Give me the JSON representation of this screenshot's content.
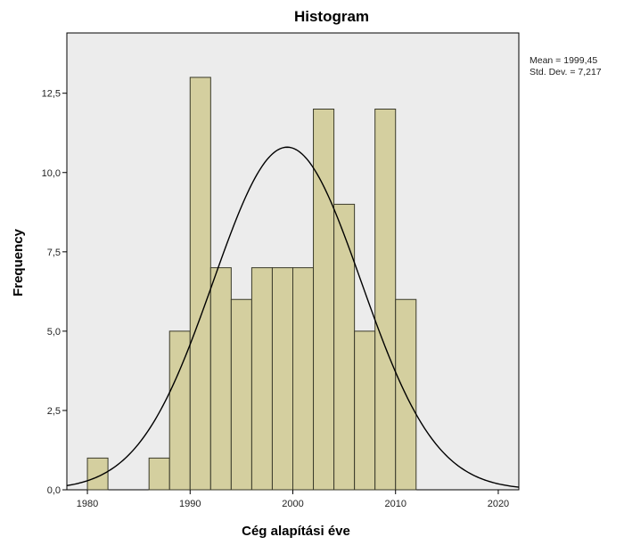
{
  "chart_data": {
    "type": "bar",
    "title": "Histogram",
    "xlabel": "Cég alapítási éve",
    "ylabel": "Frequency",
    "xlim": [
      1978,
      2022
    ],
    "ylim": [
      0,
      14.4
    ],
    "x_ticks": [
      1980,
      1990,
      2000,
      2010,
      2020
    ],
    "x_tick_labels": [
      "1980",
      "1990",
      "2000",
      "2010",
      "2020"
    ],
    "y_ticks": [
      0,
      2.5,
      5,
      7.5,
      10,
      12.5
    ],
    "y_tick_labels": [
      "0,0",
      "2,5",
      "5,0",
      "7,5",
      "10,0",
      "12,5"
    ],
    "bin_width": 2,
    "bins": [
      {
        "start": 1980,
        "end": 1982,
        "count": 1
      },
      {
        "start": 1986,
        "end": 1988,
        "count": 1
      },
      {
        "start": 1988,
        "end": 1990,
        "count": 5
      },
      {
        "start": 1990,
        "end": 1992,
        "count": 13
      },
      {
        "start": 1992,
        "end": 1994,
        "count": 7
      },
      {
        "start": 1994,
        "end": 1996,
        "count": 6
      },
      {
        "start": 1996,
        "end": 1998,
        "count": 7
      },
      {
        "start": 1998,
        "end": 2000,
        "count": 7
      },
      {
        "start": 2000,
        "end": 2002,
        "count": 7
      },
      {
        "start": 2002,
        "end": 2004,
        "count": 12
      },
      {
        "start": 2004,
        "end": 2006,
        "count": 9
      },
      {
        "start": 2006,
        "end": 2008,
        "count": 5
      },
      {
        "start": 2008,
        "end": 2010,
        "count": 12
      },
      {
        "start": 2010,
        "end": 2012,
        "count": 6
      }
    ],
    "normal_curve": {
      "mean": 1999.45,
      "std_dev": 7.217,
      "peak": 10.8
    },
    "stats": {
      "mean_label": "Mean = 1999,45",
      "std_label": "Std. Dev. = 7,217"
    },
    "grid": false,
    "colors": {
      "plot_bg": "#ececec",
      "bar_fill": "#d4cf9f",
      "bar_stroke": "#3a3a2a",
      "curve": "#000000"
    }
  }
}
